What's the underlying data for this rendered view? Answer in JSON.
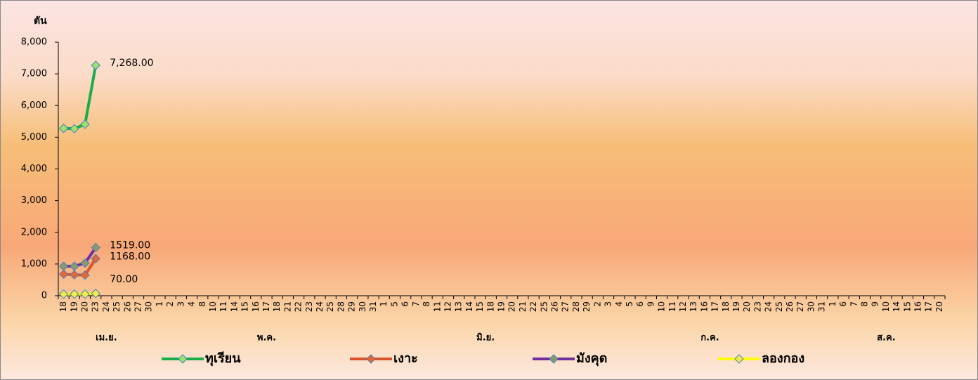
{
  "chart_data": {
    "type": "line",
    "y_axis_label": "ตัน",
    "ylim": [
      0,
      8000
    ],
    "yticks": [
      0,
      {
        "value": 1000,
        "label": "1,000"
      },
      {
        "value": 2000,
        "label": "2,000"
      },
      {
        "value": 3000,
        "label": "3,000"
      },
      {
        "value": 4000,
        "label": "4,000"
      },
      {
        "value": 5000,
        "label": "5,000"
      },
      {
        "value": 6000,
        "label": "6,000"
      },
      {
        "value": 7000,
        "label": "7,000"
      },
      {
        "value": 8000,
        "label": "8,000"
      }
    ],
    "categories": [
      "18",
      "19",
      "20",
      "23",
      "24",
      "25",
      "26",
      "27",
      "30",
      "1",
      "2",
      "3",
      "4",
      "8",
      "10",
      "11",
      "14",
      "15",
      "16",
      "17",
      "18",
      "21",
      "22",
      "23",
      "24",
      "25",
      "28",
      "29",
      "30",
      "31",
      "1",
      "5",
      "6",
      "7",
      "8",
      "11",
      "12",
      "13",
      "14",
      "15",
      "18",
      "19",
      "20",
      "21",
      "22",
      "25",
      "26",
      "27",
      "28",
      "29",
      "2",
      "3",
      "4",
      "5",
      "6",
      "9",
      "10",
      "11",
      "12",
      "13",
      "16",
      "17",
      "18",
      "19",
      "20",
      "23",
      "24",
      "25",
      "26",
      "27",
      "30",
      "31",
      "1",
      "6",
      "7",
      "8",
      "9",
      "10",
      "14",
      "15",
      "16",
      "17",
      "20"
    ],
    "month_labels": [
      "เม.ย.",
      "พ.ค.",
      "มิ.ย.",
      "ก.ค.",
      "ส.ค."
    ],
    "series": [
      {
        "name": "ทุเรียน",
        "color": "#1aae4a",
        "marker_color": "#9be36a",
        "values": [
          5280,
          5270,
          5410,
          7268,
          null,
          null,
          null,
          null,
          null,
          null,
          null,
          null,
          null,
          null,
          null,
          null,
          null,
          null,
          null,
          null,
          null,
          null,
          null,
          null,
          null,
          null,
          null,
          null,
          null,
          null,
          null,
          null,
          null,
          null,
          null,
          null,
          null,
          null,
          null,
          null,
          null,
          null,
          null,
          null,
          null,
          null,
          null,
          null,
          null,
          null,
          null,
          null,
          null,
          null,
          null,
          null,
          null,
          null,
          null,
          null,
          null,
          null,
          null,
          null,
          null,
          null,
          null,
          null,
          null,
          null,
          null,
          null,
          null,
          null,
          null,
          null,
          null,
          null,
          null,
          null,
          null,
          null,
          null
        ],
        "value_labels": [
          null,
          null,
          null,
          "7,268.00",
          null,
          null,
          null,
          null,
          null,
          null,
          null,
          null,
          null,
          null,
          null,
          null,
          null,
          null,
          null,
          null,
          null,
          null,
          null,
          null,
          null,
          null,
          null,
          null,
          null,
          null,
          null,
          null,
          null,
          null,
          null,
          null,
          null,
          null,
          null,
          null,
          null,
          null,
          null,
          null,
          null,
          null,
          null,
          null,
          null,
          null,
          null,
          null,
          null,
          null,
          null,
          null,
          null,
          null,
          null,
          null,
          null,
          null,
          null,
          null,
          null,
          null,
          null,
          null,
          null,
          null,
          null,
          null,
          null,
          null,
          null,
          null,
          null,
          null,
          null,
          null,
          null,
          null,
          null
        ]
      },
      {
        "name": "เงาะ",
        "color": "#d9542b",
        "marker_color": "#e8662f",
        "values": [
          680,
          660,
          650,
          1168,
          null,
          null,
          null,
          null,
          null,
          null,
          null,
          null,
          null,
          null,
          null,
          null,
          null,
          null,
          null,
          null,
          null,
          null,
          null,
          null,
          null,
          null,
          null,
          null,
          null,
          null,
          null,
          null,
          null,
          null,
          null,
          null,
          null,
          null,
          null,
          null,
          null,
          null,
          null,
          null,
          null,
          null,
          null,
          null,
          null,
          null,
          null,
          null,
          null,
          null,
          null,
          null,
          null,
          null,
          null,
          null,
          null,
          null,
          null,
          null,
          null,
          null,
          null,
          null,
          null,
          null,
          null,
          null,
          null,
          null,
          null,
          null,
          null,
          null,
          null,
          null,
          null,
          null,
          null
        ],
        "value_labels": [
          null,
          null,
          null,
          "1168.00",
          null,
          null,
          null,
          null,
          null,
          null,
          null,
          null,
          null,
          null,
          null,
          null,
          null,
          null,
          null,
          null,
          null,
          null,
          null,
          null,
          null,
          null,
          null,
          null,
          null,
          null,
          null,
          null,
          null,
          null,
          null,
          null,
          null,
          null,
          null,
          null,
          null,
          null,
          null,
          null,
          null,
          null,
          null,
          null,
          null,
          null,
          null,
          null,
          null,
          null,
          null,
          null,
          null,
          null,
          null,
          null,
          null,
          null,
          null,
          null,
          null,
          null,
          null,
          null,
          null,
          null,
          null,
          null,
          null,
          null,
          null,
          null,
          null,
          null,
          null,
          null,
          null,
          null,
          null
        ]
      },
      {
        "name": "มังคุด",
        "color": "#7030a0",
        "marker_color": "#8a9a6a",
        "values": [
          930,
          930,
          1030,
          1519,
          null,
          null,
          null,
          null,
          null,
          null,
          null,
          null,
          null,
          null,
          null,
          null,
          null,
          null,
          null,
          null,
          null,
          null,
          null,
          null,
          null,
          null,
          null,
          null,
          null,
          null,
          null,
          null,
          null,
          null,
          null,
          null,
          null,
          null,
          null,
          null,
          null,
          null,
          null,
          null,
          null,
          null,
          null,
          null,
          null,
          null,
          null,
          null,
          null,
          null,
          null,
          null,
          null,
          null,
          null,
          null,
          null,
          null,
          null,
          null,
          null,
          null,
          null,
          null,
          null,
          null,
          null,
          null,
          null,
          null,
          null,
          null,
          null,
          null,
          null,
          null,
          null,
          null,
          null
        ],
        "value_labels": [
          null,
          null,
          null,
          "1519.00",
          null,
          null,
          null,
          null,
          null,
          null,
          null,
          null,
          null,
          null,
          null,
          null,
          null,
          null,
          null,
          null,
          null,
          null,
          null,
          null,
          null,
          null,
          null,
          null,
          null,
          null,
          null,
          null,
          null,
          null,
          null,
          null,
          null,
          null,
          null,
          null,
          null,
          null,
          null,
          null,
          null,
          null,
          null,
          null,
          null,
          null,
          null,
          null,
          null,
          null,
          null,
          null,
          null,
          null,
          null,
          null,
          null,
          null,
          null,
          null,
          null,
          null,
          null,
          null,
          null,
          null,
          null,
          null,
          null,
          null,
          null,
          null,
          null,
          null,
          null,
          null,
          null,
          null,
          null
        ]
      },
      {
        "name": "ลองกอง",
        "color": "#ffff00",
        "marker_color": "#f2ec4a",
        "values": [
          50,
          50,
          50,
          70,
          null,
          null,
          null,
          null,
          null,
          null,
          null,
          null,
          null,
          null,
          null,
          null,
          null,
          null,
          null,
          null,
          null,
          null,
          null,
          null,
          null,
          null,
          null,
          null,
          null,
          null,
          null,
          null,
          null,
          null,
          null,
          null,
          null,
          null,
          null,
          null,
          null,
          null,
          null,
          null,
          null,
          null,
          null,
          null,
          null,
          null,
          null,
          null,
          null,
          null,
          null,
          null,
          null,
          null,
          null,
          null,
          null,
          null,
          null,
          null,
          null,
          null,
          null,
          null,
          null,
          null,
          null,
          null,
          null,
          null,
          null,
          null,
          null,
          null,
          null,
          null,
          null,
          null,
          null
        ],
        "value_labels": [
          null,
          null,
          null,
          "70.00",
          null,
          null,
          null,
          null,
          null,
          null,
          null,
          null,
          null,
          null,
          null,
          null,
          null,
          null,
          null,
          null,
          null,
          null,
          null,
          null,
          null,
          null,
          null,
          null,
          null,
          null,
          null,
          null,
          null,
          null,
          null,
          null,
          null,
          null,
          null,
          null,
          null,
          null,
          null,
          null,
          null,
          null,
          null,
          null,
          null,
          null,
          null,
          null,
          null,
          null,
          null,
          null,
          null,
          null,
          null,
          null,
          null,
          null,
          null,
          null,
          null,
          null,
          null,
          null,
          null,
          null,
          null,
          null,
          null,
          null,
          null,
          null,
          null,
          null,
          null,
          null,
          null,
          null,
          null
        ]
      }
    ]
  }
}
